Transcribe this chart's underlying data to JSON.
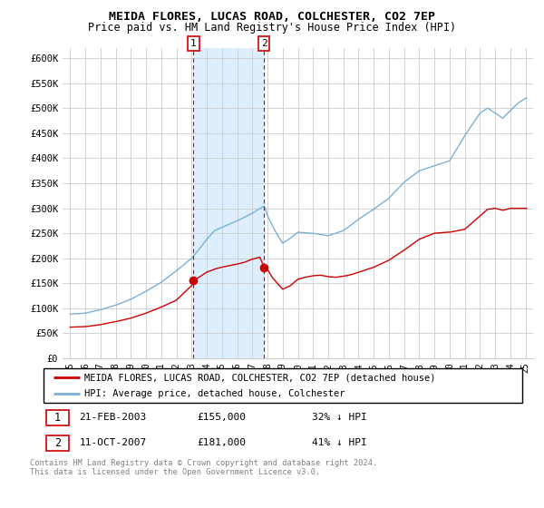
{
  "title": "MEIDA FLORES, LUCAS ROAD, COLCHESTER, CO2 7EP",
  "subtitle": "Price paid vs. HM Land Registry's House Price Index (HPI)",
  "legend_label_red": "MEIDA FLORES, LUCAS ROAD, COLCHESTER, CO2 7EP (detached house)",
  "legend_label_blue": "HPI: Average price, detached house, Colchester",
  "annotation1_label": "1",
  "annotation1_date": "21-FEB-2003",
  "annotation1_price": "£155,000",
  "annotation1_pct": "32% ↓ HPI",
  "annotation2_label": "2",
  "annotation2_date": "11-OCT-2007",
  "annotation2_price": "£181,000",
  "annotation2_pct": "41% ↓ HPI",
  "footnote1": "Contains HM Land Registry data © Crown copyright and database right 2024.",
  "footnote2": "This data is licensed under the Open Government Licence v3.0.",
  "red_color": "#cc0000",
  "blue_color": "#7ab0d4",
  "shade_color": "#ddeeff",
  "annotation_box_color": "#cc0000",
  "ylim_min": 0,
  "ylim_max": 620000,
  "yticks": [
    0,
    50000,
    100000,
    150000,
    200000,
    250000,
    300000,
    350000,
    400000,
    450000,
    500000,
    550000,
    600000
  ],
  "ytick_labels": [
    "£0",
    "£50K",
    "£100K",
    "£150K",
    "£200K",
    "£250K",
    "£300K",
    "£350K",
    "£400K",
    "£450K",
    "£500K",
    "£550K",
    "£600K"
  ],
  "sale1_year": 2003.13,
  "sale1_price": 155000,
  "sale2_year": 2007.78,
  "sale2_price": 181000,
  "shade_x1": 2003.13,
  "shade_x2": 2007.78,
  "vline1_year": 2003.13,
  "vline2_year": 2007.78,
  "xlim_min": 1994.5,
  "xlim_max": 2025.5
}
